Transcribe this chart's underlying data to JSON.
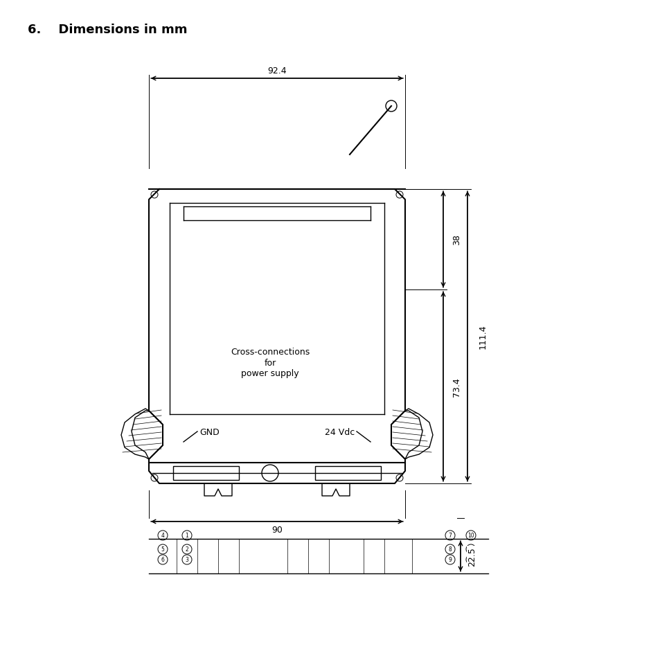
{
  "title": "6.    Dimensions in mm",
  "title_fontsize": 13,
  "title_bold": true,
  "bg_color": "#ffffff",
  "line_color": "#000000",
  "dim_92_4": "92.4",
  "dim_90": "90",
  "dim_38": "38",
  "dim_111_4": "111.4",
  "dim_73_4": "73.4",
  "dim_22_5": "22.5",
  "label_gnd": "GND",
  "label_24vdc": "24 Vdc",
  "label_cross": "Cross-connections\nfor\npower supply",
  "annotation_fontsize": 9,
  "label_fontsize": 9
}
